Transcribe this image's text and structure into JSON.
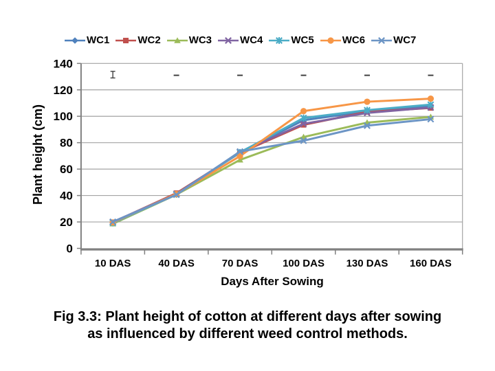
{
  "chart_data": {
    "type": "line",
    "categories": [
      "10 DAS",
      "40 DAS",
      "70 DAS",
      "100 DAS",
      "130 DAS",
      "160 DAS"
    ],
    "series": [
      {
        "name": "WC1",
        "color": "#4F81BD",
        "marker": "diamond",
        "values": [
          19.5,
          41.0,
          72.8,
          97.0,
          103.8,
          108.0
        ]
      },
      {
        "name": "WC2",
        "color": "#C0504D",
        "marker": "square",
        "values": [
          19.8,
          41.8,
          72.3,
          93.5,
          103.3,
          106.3
        ]
      },
      {
        "name": "WC3",
        "color": "#9BBB59",
        "marker": "triangle",
        "values": [
          18.6,
          40.7,
          67.0,
          84.3,
          95.2,
          99.5
        ]
      },
      {
        "name": "WC4",
        "color": "#8064A2",
        "marker": "x",
        "values": [
          20.0,
          41.2,
          72.9,
          94.3,
          102.5,
          106.6
        ]
      },
      {
        "name": "WC5",
        "color": "#4BACC6",
        "marker": "star",
        "values": [
          19.2,
          40.9,
          72.6,
          98.7,
          104.6,
          108.8
        ]
      },
      {
        "name": "WC6",
        "color": "#F79646",
        "marker": "circle",
        "values": [
          19.6,
          41.1,
          69.8,
          103.9,
          111.0,
          113.3
        ]
      },
      {
        "name": "WC7",
        "color": "#6C95C5",
        "marker": "x",
        "values": [
          20.1,
          40.6,
          73.3,
          81.5,
          92.9,
          97.8
        ]
      }
    ],
    "xlabel": "Days After Sowing",
    "ylabel": "Plant height (cm)",
    "ylim": [
      0,
      140
    ],
    "yticks": [
      0,
      20,
      40,
      60,
      80,
      100,
      120,
      140
    ],
    "grid": "horizontal",
    "legend_position": "top",
    "error_bars": {
      "value": 131,
      "first_category_range": [
        129,
        134
      ],
      "style": "short dash at each category; capped vertical bar at first category"
    }
  },
  "caption": {
    "line1": "Fig 3.3: Plant height of cotton at different days after sowing",
    "line2": "as influenced by different weed control methods."
  },
  "colors": {
    "background": "#FFFFFF",
    "gridline": "#A3A3A3",
    "axis": "#808080",
    "error_bar": "#404040",
    "text": "#000000"
  }
}
